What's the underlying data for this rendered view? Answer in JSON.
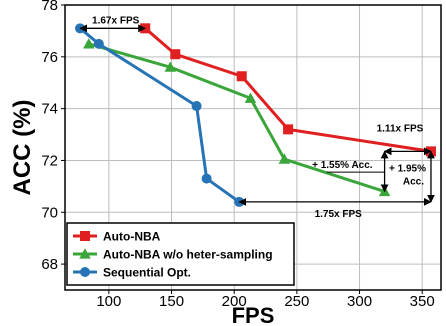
{
  "chart_data": {
    "type": "line",
    "title": "",
    "xlabel": "FPS",
    "ylabel": "ACC (%)",
    "xlim": [
      65,
      365
    ],
    "ylim": [
      67,
      78
    ],
    "xticks": [
      100,
      150,
      200,
      250,
      300,
      350
    ],
    "yticks": [
      68,
      70,
      72,
      74,
      76,
      78
    ],
    "grid": true,
    "legend_placement": "bottom-left",
    "series": [
      {
        "name": "Auto-NBA",
        "color": "#e02020",
        "marker": "square",
        "points": [
          [
            129,
            77.1
          ],
          [
            153,
            76.1
          ],
          [
            206,
            75.25
          ],
          [
            243,
            73.2
          ],
          [
            357,
            72.35
          ]
        ]
      },
      {
        "name": "Auto-NBA w/o heter-sampling",
        "color": "#3aa63a",
        "marker": "triangle",
        "points": [
          [
            84,
            76.5
          ],
          [
            149,
            75.6
          ],
          [
            213,
            74.4
          ],
          [
            240,
            72.05
          ],
          [
            320,
            70.8
          ]
        ]
      },
      {
        "name": "Sequential Opt.",
        "color": "#2673b5",
        "marker": "circle",
        "points": [
          [
            77,
            77.1
          ],
          [
            92,
            76.5
          ],
          [
            170,
            74.1
          ],
          [
            178,
            71.3
          ],
          [
            204,
            70.4
          ]
        ]
      }
    ],
    "annotations": [
      {
        "text": "1.67x FPS",
        "from": [
          77,
          77.1
        ],
        "to": [
          129,
          77.1
        ]
      },
      {
        "text": "1.11x FPS",
        "from": [
          320,
          72.35
        ],
        "to": [
          357,
          72.35
        ]
      },
      {
        "text": "1.75x FPS",
        "from": [
          204,
          70.4
        ],
        "to": [
          357,
          70.4
        ]
      },
      {
        "text": "+ 1.55% Acc.",
        "from": [
          320,
          70.8
        ],
        "to": [
          320,
          72.35
        ]
      },
      {
        "text": "+ 1.95%",
        "from": [
          357,
          70.4
        ],
        "to": [
          357,
          72.35
        ]
      },
      {
        "text": "Acc.",
        "from": [
          357,
          70.4
        ],
        "to": [
          357,
          72.35
        ]
      }
    ]
  }
}
